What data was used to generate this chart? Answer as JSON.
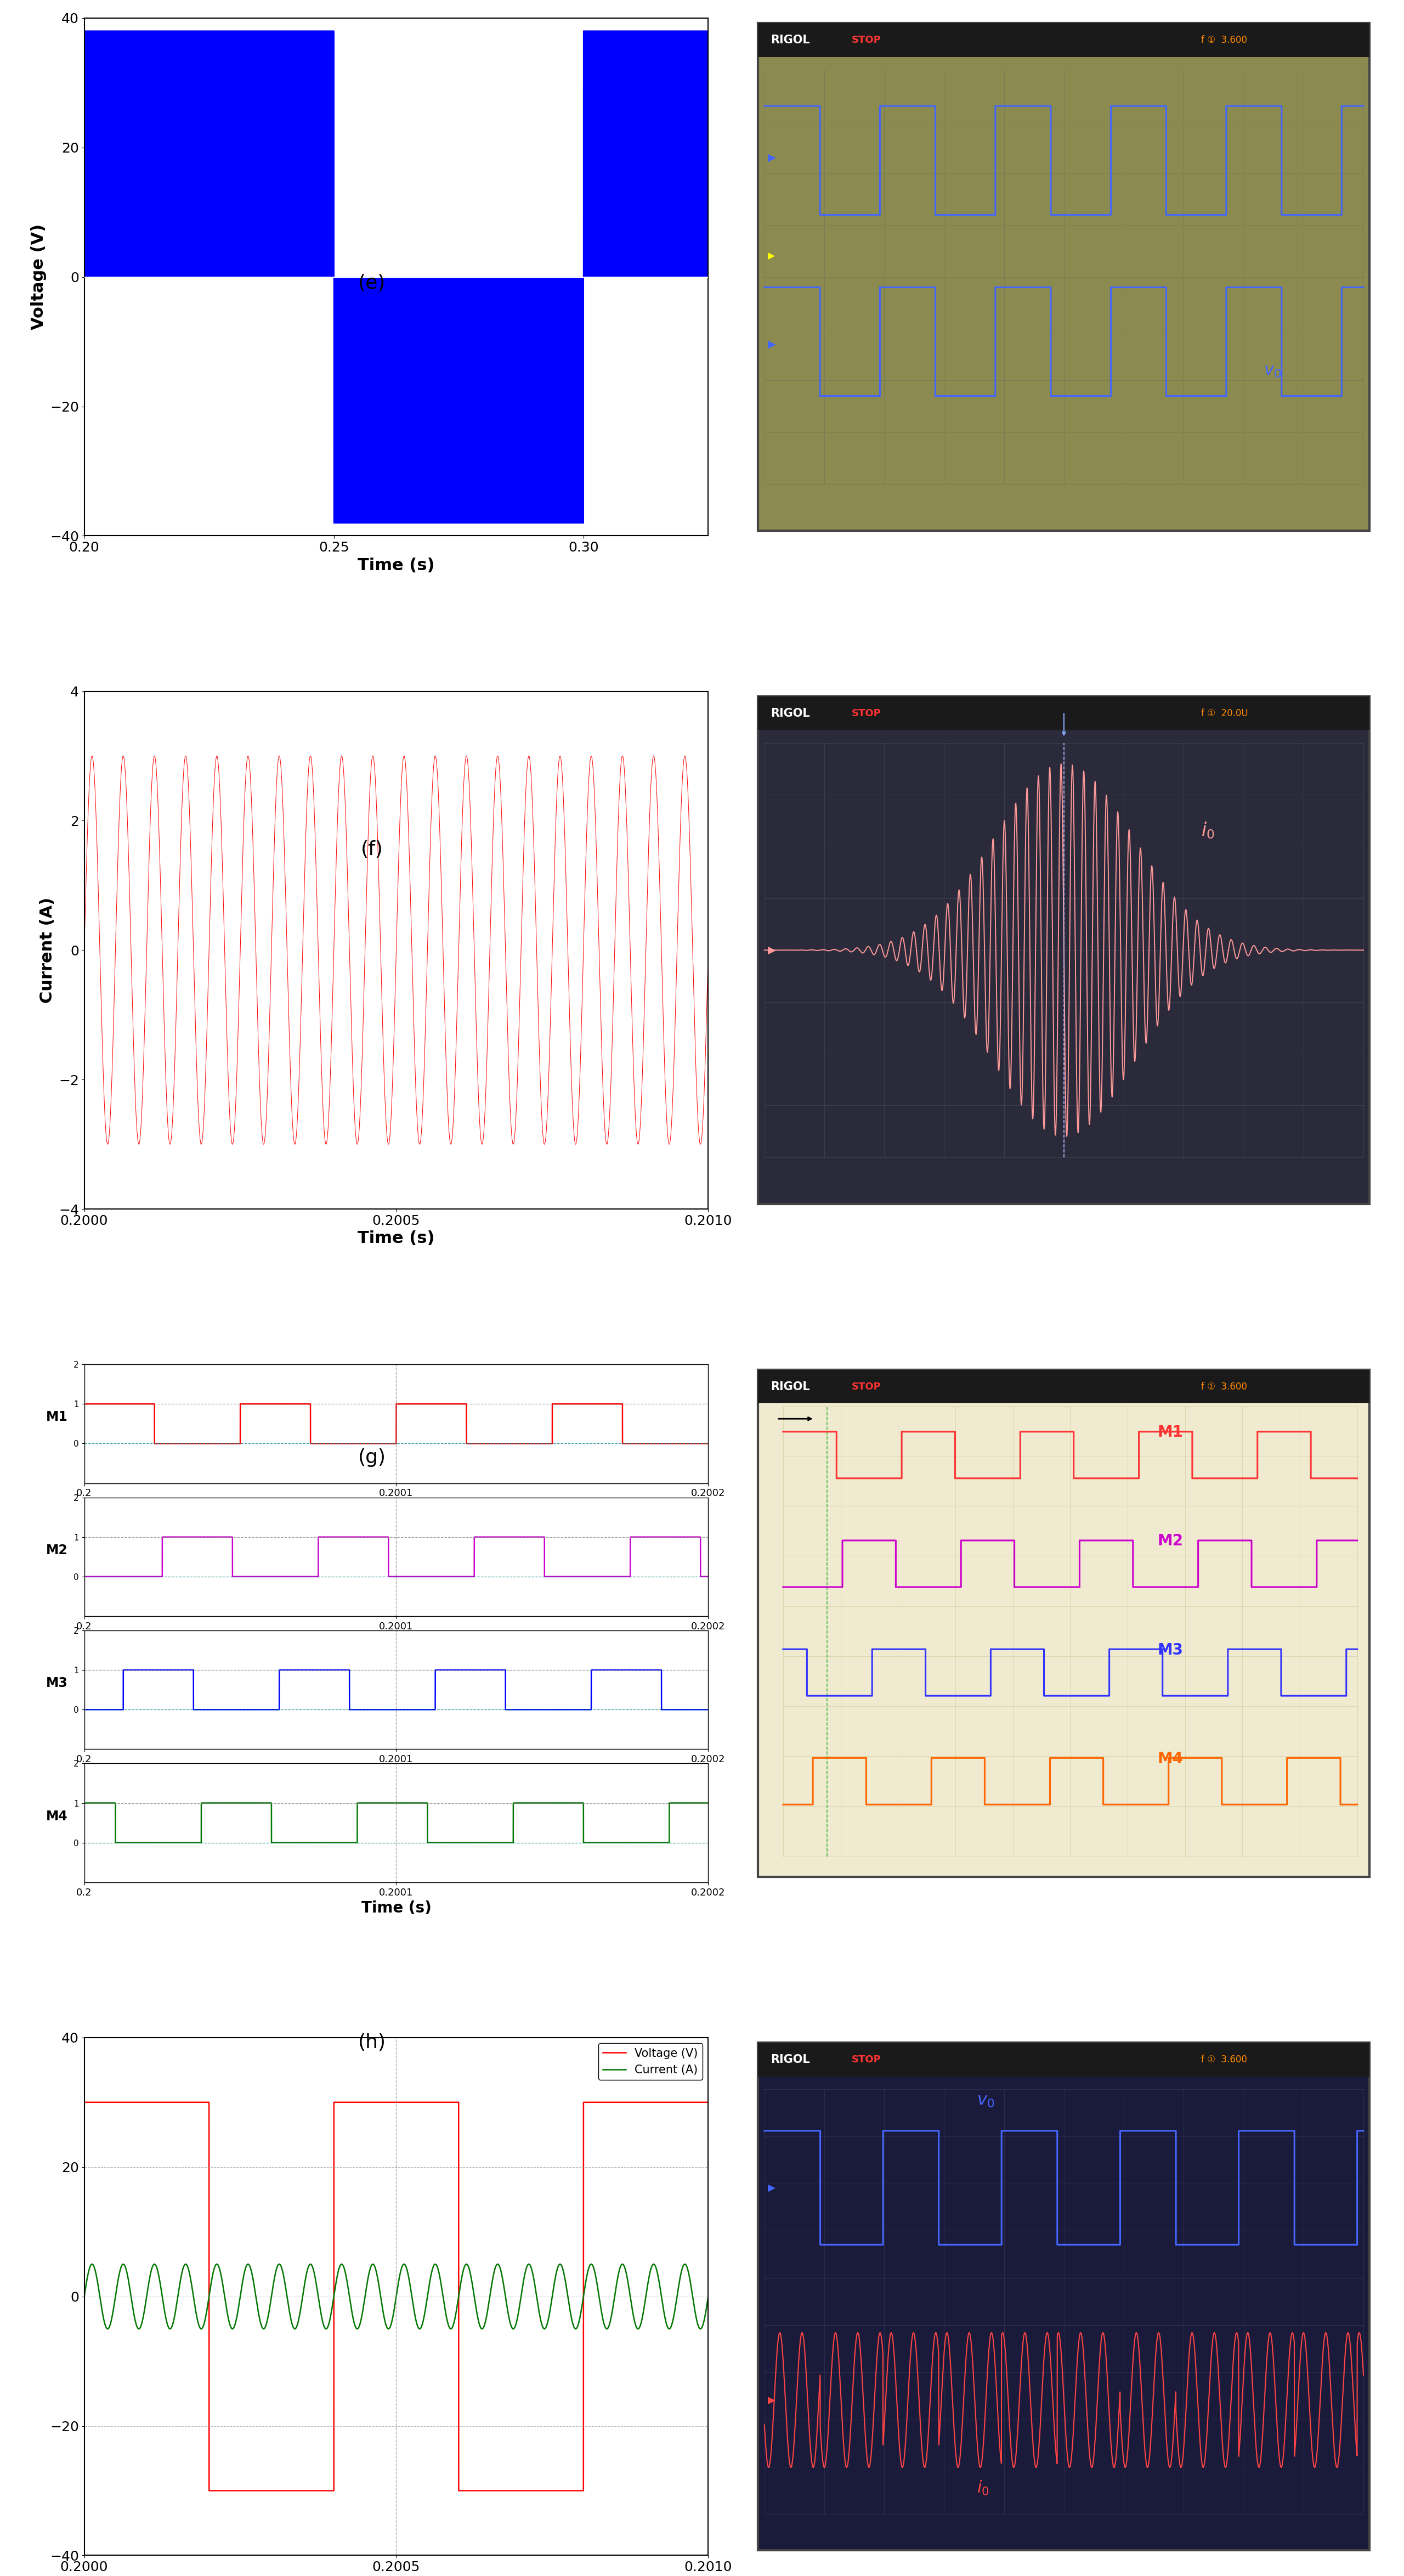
{
  "panel_e": {
    "xlim": [
      0.2,
      0.325
    ],
    "ylim": [
      -40,
      40
    ],
    "xlabel": "Time (s)",
    "ylabel": "Voltage (V)",
    "xticks": [
      0.2,
      0.25,
      0.3
    ],
    "yticks": [
      -40,
      -20,
      0,
      20,
      40
    ],
    "color": "#0000FF",
    "label": "(e)"
  },
  "panel_f": {
    "xlim": [
      0.2,
      0.201
    ],
    "ylim": [
      -4,
      4
    ],
    "xlabel": "Time (s)",
    "ylabel": "Current (A)",
    "xticks": [
      0.2,
      0.2005,
      0.201
    ],
    "yticks": [
      -4,
      -2,
      0,
      2,
      4
    ],
    "color": "#FF0000",
    "label": "(f)"
  },
  "panel_g": {
    "xlim": [
      0.2,
      0.2002
    ],
    "xlabel": "Time (s)",
    "xticks": [
      0.2,
      0.2001,
      0.2002
    ],
    "colors": [
      "#FF0000",
      "#CC00CC",
      "#0000FF",
      "#007700"
    ],
    "labels": [
      "M1",
      "M2",
      "M3",
      "M4"
    ],
    "label": "(g)"
  },
  "panel_h": {
    "xlim": [
      0.2,
      0.201
    ],
    "ylim": [
      -40,
      40
    ],
    "xlabel": "Time (s)",
    "xticks": [
      0.2,
      0.2005,
      0.201
    ],
    "yticks": [
      -40,
      -20,
      0,
      20,
      40
    ],
    "voltage_color": "#FF0000",
    "current_color": "#007700",
    "label": "(h)"
  }
}
